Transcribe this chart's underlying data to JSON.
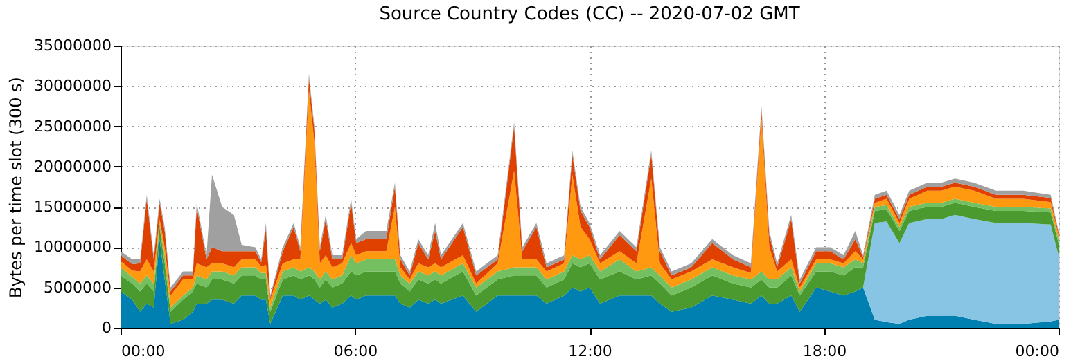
{
  "chart_data": {
    "type": "area",
    "stacked": true,
    "title": "Source Country Codes (CC) -- 2020-07-02 GMT",
    "ylabel": "Bytes per time slot (300 s)",
    "x": [
      0,
      0.3,
      0.5,
      0.67,
      0.85,
      1.0,
      1.13,
      1.28,
      1.6,
      1.85,
      1.95,
      2.2,
      2.34,
      2.6,
      2.9,
      3.1,
      3.45,
      3.6,
      3.72,
      3.83,
      4.15,
      4.43,
      4.6,
      4.82,
      4.96,
      5.1,
      5.25,
      5.42,
      5.67,
      5.9,
      6.03,
      6.28,
      6.8,
      7.02,
      7.16,
      7.4,
      7.62,
      7.87,
      8.05,
      8.2,
      8.76,
      9.1,
      9.65,
      10.07,
      10.28,
      10.64,
      10.9,
      11.35,
      11.56,
      11.77,
      12.0,
      12.27,
      12.77,
      13.2,
      13.58,
      13.8,
      14.1,
      14.6,
      15.14,
      15.67,
      16.13,
      16.4,
      16.6,
      16.8,
      17.16,
      17.38,
      17.8,
      18.16,
      18.5,
      18.8,
      19.0,
      19.3,
      19.6,
      19.93,
      20.18,
      20.64,
      21.0,
      21.35,
      21.84,
      22.4,
      23.1,
      23.8,
      24
    ],
    "series": [
      {
        "color": "#0080b0",
        "values": [
          4500000,
          3500000,
          2000000,
          3000000,
          2500000,
          11000000,
          6000000,
          500000,
          1000000,
          2000000,
          3000000,
          3000000,
          3500000,
          3500000,
          3000000,
          4000000,
          4000000,
          3500000,
          3500000,
          500000,
          4000000,
          4000000,
          3500000,
          4000000,
          3500000,
          3000000,
          3500000,
          2500000,
          3000000,
          4000000,
          3500000,
          4000000,
          4000000,
          4000000,
          3000000,
          2500000,
          3500000,
          3000000,
          3500000,
          3000000,
          4000000,
          2000000,
          4000000,
          4000000,
          4000000,
          4000000,
          3000000,
          4000000,
          5000000,
          4500000,
          5000000,
          3000000,
          4000000,
          4000000,
          4000000,
          3000000,
          2000000,
          2500000,
          4000000,
          3500000,
          3000000,
          4000000,
          3000000,
          3000000,
          4000000,
          2000000,
          5000000,
          4500000,
          4000000,
          4500000,
          5000000,
          1000000,
          700000,
          500000,
          1000000,
          1500000,
          1500000,
          1500000,
          1000000,
          500000,
          500000,
          800000,
          1000000
        ]
      },
      {
        "color": "#88c4e4",
        "values": [
          0,
          0,
          0,
          0,
          0,
          0,
          0,
          0,
          0,
          0,
          0,
          0,
          0,
          0,
          0,
          0,
          0,
          0,
          0,
          0,
          0,
          0,
          0,
          0,
          0,
          0,
          0,
          0,
          0,
          0,
          0,
          0,
          0,
          0,
          0,
          0,
          0,
          0,
          0,
          0,
          0,
          0,
          0,
          0,
          0,
          0,
          0,
          0,
          0,
          0,
          0,
          0,
          0,
          0,
          0,
          0,
          0,
          0,
          0,
          0,
          0,
          0,
          0,
          0,
          0,
          0,
          0,
          0,
          0,
          0,
          0,
          12000000,
          12500000,
          10000000,
          12000000,
          12000000,
          12000000,
          12500000,
          12500000,
          12500000,
          12500000,
          12000000,
          8000000
        ]
      },
      {
        "color": "#4a9a30",
        "values": [
          2000000,
          2000000,
          2500000,
          2500000,
          2000000,
          1500000,
          2000000,
          1500000,
          2500000,
          2500000,
          2500000,
          2000000,
          2500000,
          2500000,
          2500000,
          2500000,
          2500000,
          2500000,
          2500000,
          1500000,
          2000000,
          2500000,
          2500000,
          2500000,
          2500000,
          2000000,
          2500000,
          2500000,
          2500000,
          3000000,
          3000000,
          3000000,
          3000000,
          3000000,
          2500000,
          2000000,
          2500000,
          2500000,
          2500000,
          2500000,
          3000000,
          2000000,
          2000000,
          2500000,
          2500000,
          2500000,
          2000000,
          2000000,
          3000000,
          3000000,
          3000000,
          3000000,
          3000000,
          2000000,
          2500000,
          2500000,
          2000000,
          2500000,
          2500000,
          2000000,
          2000000,
          2000000,
          2000000,
          2000000,
          2500000,
          2000000,
          2000000,
          2500000,
          2500000,
          3000000,
          2500000,
          1500000,
          1500000,
          1500000,
          1500000,
          1500000,
          1500000,
          1500000,
          1500000,
          1500000,
          1500000,
          1500000,
          1500000
        ]
      },
      {
        "color": "#74c060",
        "values": [
          1000000,
          800000,
          1000000,
          1000000,
          1000000,
          500000,
          1000000,
          500000,
          500000,
          500000,
          1000000,
          1000000,
          1000000,
          1000000,
          1000000,
          1000000,
          1000000,
          800000,
          800000,
          500000,
          1000000,
          1000000,
          1000000,
          1000000,
          1000000,
          1000000,
          1000000,
          1000000,
          1000000,
          2000000,
          1500000,
          1500000,
          1500000,
          1500000,
          1000000,
          1000000,
          1000000,
          1000000,
          1000000,
          1000000,
          1000000,
          1000000,
          1000000,
          1000000,
          1000000,
          1000000,
          1000000,
          1000000,
          1000000,
          1000000,
          1000000,
          1000000,
          1500000,
          1000000,
          1000000,
          1000000,
          1000000,
          1000000,
          1000000,
          1000000,
          1000000,
          1000000,
          1000000,
          1000000,
          1000000,
          500000,
          1000000,
          1000000,
          1000000,
          1000000,
          500000,
          500000,
          500000,
          500000,
          500000,
          500000,
          500000,
          500000,
          500000,
          500000,
          500000,
          500000,
          500000
        ]
      },
      {
        "color": "#ff9a10",
        "values": [
          800000,
          800000,
          1500000,
          2000000,
          1500000,
          500000,
          1000000,
          1500000,
          2000000,
          1000000,
          1500000,
          1500000,
          1000000,
          1000000,
          1000000,
          1000000,
          1000000,
          800000,
          1000000,
          1000000,
          1000000,
          1000000,
          1500000,
          22000000,
          16000000,
          2000000,
          2000000,
          1500000,
          1500000,
          1500000,
          1000000,
          1000000,
          1000000,
          6500000,
          1000000,
          500000,
          1000000,
          1000000,
          1000000,
          1000000,
          1000000,
          500000,
          1000000,
          12000000,
          1000000,
          1000000,
          1000000,
          1000000,
          10000000,
          4000000,
          2000000,
          1000000,
          1000000,
          1000000,
          11000000,
          1500000,
          1000000,
          1000000,
          1000000,
          1000000,
          800000,
          19000000,
          4000000,
          1000000,
          1000000,
          500000,
          500000,
          500000,
          500000,
          1000000,
          500000,
          500000,
          800000,
          500000,
          1000000,
          1500000,
          1500000,
          1500000,
          1500000,
          1000000,
          1000000,
          800000,
          500000
        ]
      },
      {
        "color": "#e04000",
        "values": [
          700000,
          800000,
          1000000,
          7500000,
          1500000,
          2000000,
          2000000,
          500000,
          500000,
          500000,
          7000000,
          1000000,
          2000000,
          1500000,
          2000000,
          1000000,
          1000000,
          500000,
          4500000,
          300000,
          1500000,
          4000000,
          1000000,
          1500000,
          1500000,
          1500000,
          4500000,
          1000000,
          500000,
          5000000,
          1500000,
          1500000,
          1500000,
          2500000,
          1000000,
          500000,
          2500000,
          1000000,
          4000000,
          1000000,
          3500000,
          1000000,
          500000,
          5500000,
          1000000,
          4000000,
          500000,
          500000,
          2500000,
          2000000,
          1500000,
          500000,
          2000000,
          1500000,
          3000000,
          1500000,
          500000,
          500000,
          2000000,
          1000000,
          700000,
          1000000,
          1500000,
          500000,
          5000000,
          500000,
          1000000,
          1000000,
          500000,
          1500000,
          300000,
          500000,
          500000,
          500000,
          500000,
          500000,
          500000,
          500000,
          500000,
          500000,
          500000,
          500000,
          300000
        ]
      },
      {
        "color": "#a0a0a0",
        "values": [
          500000,
          600000,
          500000,
          500000,
          500000,
          500000,
          500000,
          500000,
          500000,
          500000,
          500000,
          500000,
          9000000,
          5500000,
          4500000,
          800000,
          500000,
          400000,
          700000,
          200000,
          500000,
          500000,
          500000,
          500000,
          500000,
          500000,
          500000,
          500000,
          500000,
          500000,
          500000,
          1000000,
          1000000,
          500000,
          500000,
          500000,
          500000,
          500000,
          1000000,
          500000,
          500000,
          500000,
          500000,
          500000,
          500000,
          500000,
          500000,
          500000,
          500000,
          500000,
          500000,
          500000,
          500000,
          500000,
          500000,
          500000,
          500000,
          500000,
          500000,
          500000,
          500000,
          500000,
          500000,
          500000,
          500000,
          500000,
          500000,
          500000,
          500000,
          1000000,
          200000,
          500000,
          500000,
          500000,
          500000,
          500000,
          500000,
          500000,
          500000,
          500000,
          500000,
          400000,
          200000
        ]
      }
    ],
    "xlim": [
      0,
      24
    ],
    "xticks": [
      {
        "value": 0,
        "label": "00:00"
      },
      {
        "value": 6,
        "label": "06:00"
      },
      {
        "value": 12,
        "label": "12:00"
      },
      {
        "value": 18,
        "label": "18:00"
      },
      {
        "value": 24,
        "label": "00:00"
      }
    ],
    "ylim": [
      0,
      35000000
    ],
    "yticks": [
      0,
      5000000,
      10000000,
      15000000,
      20000000,
      25000000,
      30000000,
      35000000
    ],
    "grid": true
  }
}
